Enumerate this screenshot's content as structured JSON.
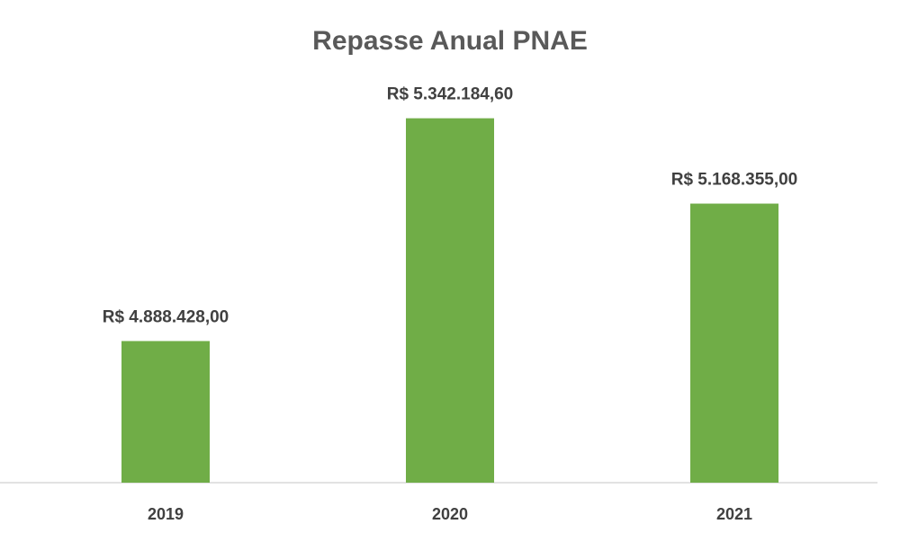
{
  "chart_data": {
    "type": "bar",
    "title": "Repasse Anual PNAE",
    "categories": [
      "2019",
      "2020",
      "2021"
    ],
    "values": [
      4888428.0,
      5342184.6,
      5168355.0
    ],
    "value_labels": [
      "R$ 4.888.428,00",
      "R$ 5.342.184,60",
      "R$ 5.168.355,00"
    ],
    "color": "#70ad47",
    "ylim": [
      4600000,
      5400000
    ]
  }
}
